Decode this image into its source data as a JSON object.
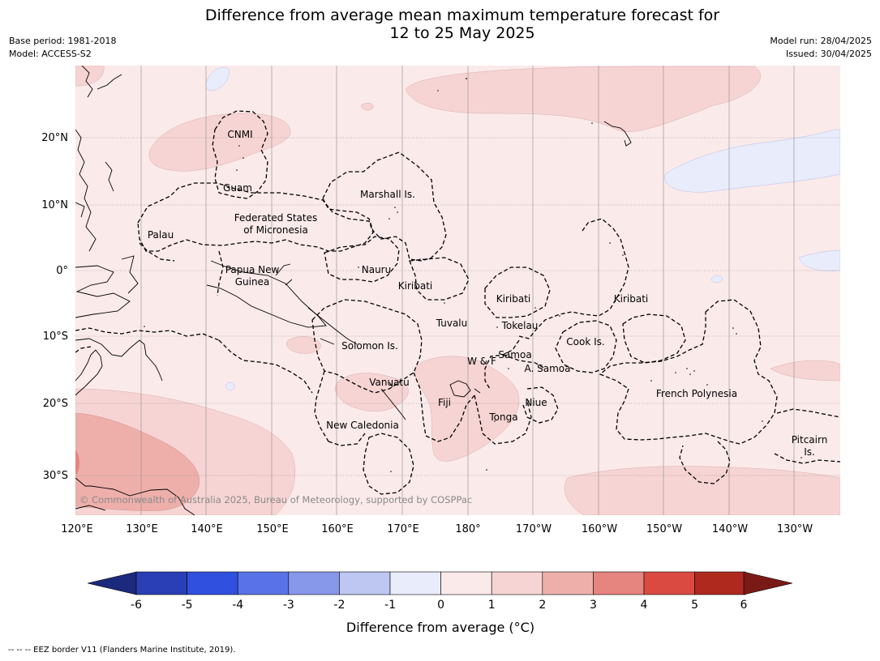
{
  "title": {
    "line1": "Difference from average mean maximum temperature forecast for",
    "line2": "12 to 25 May 2025"
  },
  "meta_left": {
    "base_period": "Base period: 1981-2018",
    "model": "Model: ACCESS-S2"
  },
  "meta_right": {
    "model_run": "Model run: 28/04/2025",
    "issued": "Issued: 30/04/2025"
  },
  "map": {
    "lat_ticks": [
      "20°N",
      "10°N",
      "0°",
      "10°S",
      "20°S",
      "30°S"
    ],
    "lon_ticks": [
      "120°E",
      "130°E",
      "140°E",
      "150°E",
      "160°E",
      "170°E",
      "180°",
      "170°W",
      "160°W",
      "150°W",
      "140°W",
      "130°W"
    ],
    "regions": [
      {
        "name": "CNMI"
      },
      {
        "name": "Guam"
      },
      {
        "name": "Marshall Is."
      },
      {
        "name": "Federated States"
      },
      {
        "name": "of Micronesia"
      },
      {
        "name": "Palau"
      },
      {
        "name": "Papua New"
      },
      {
        "name": "Guinea"
      },
      {
        "name": "Nauru"
      },
      {
        "name": "Kiribati"
      },
      {
        "name": "Kiribati"
      },
      {
        "name": "Kiribati"
      },
      {
        "name": "Tuvalu"
      },
      {
        "name": "Tokelau"
      },
      {
        "name": "Cook Is."
      },
      {
        "name": "Solomon Is."
      },
      {
        "name": "W & F"
      },
      {
        "name": "Samoa"
      },
      {
        "name": "A. Samoa"
      },
      {
        "name": "Vanuatu"
      },
      {
        "name": "Fiji"
      },
      {
        "name": "Niue"
      },
      {
        "name": "Tonga"
      },
      {
        "name": "French Polynesia"
      },
      {
        "name": "New Caledonia"
      },
      {
        "name": "Pitcairn"
      },
      {
        "name": "Is."
      }
    ],
    "copyright": "© Commonwealth of Australia 2025, Bureau of Meteorology, supported by COSPPac"
  },
  "colorbar": {
    "colors": [
      "#1b2a7c",
      "#2a3fb5",
      "#3050e0",
      "#5a72e8",
      "#8797ea",
      "#bec6f2",
      "#e9ecfb",
      "#fbeaea",
      "#f6d4d3",
      "#eeafab",
      "#e6847f",
      "#db4a41",
      "#b0291f",
      "#7a1a16"
    ],
    "ticks": [
      "-6",
      "-5",
      "-4",
      "-3",
      "-2",
      "-1",
      "0",
      "1",
      "2",
      "3",
      "4",
      "5",
      "6"
    ],
    "label": "Difference from average (°C)"
  },
  "footer": "--  --  -- EEZ border V11 (Flanders Marine Institute, 2019)."
}
